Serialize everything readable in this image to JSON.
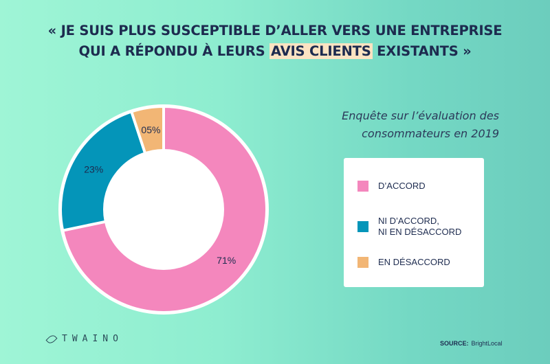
{
  "header": {
    "line1": "« JE SUIS PLUS SUSCEPTIBLE D’ALLER VERS UNE ENTREPRISE",
    "line2_before": "QUI A RÉPONDU À LEURS ",
    "line2_highlight": "AVIS CLIENTS",
    "line2_after": " EXISTANTS »"
  },
  "subtitle": "Enquête sur l’évaluation des consommateurs en 2019",
  "chart_data": {
    "type": "pie",
    "donut": true,
    "categories": [
      "D’ACCORD",
      "NI D’ACCORD, NI EN DÉSACCORD",
      "EN DÉSACCORD"
    ],
    "values": [
      71,
      23,
      5
    ],
    "data_labels": [
      "71%",
      "23%",
      "05%"
    ],
    "colors": [
      "#f487bd",
      "#0495b9",
      "#f2b675"
    ],
    "legend_position": "right"
  },
  "legend": {
    "items": [
      {
        "label": "D’ACCORD",
        "color": "#f487bd"
      },
      {
        "label": "NI D’ACCORD,\nNI EN DÉSACCORD",
        "color": "#0495b9"
      },
      {
        "label": "EN DÉSACCORD",
        "color": "#f2b675"
      }
    ]
  },
  "logo_text": "TWAINO",
  "source": {
    "label": "SOURCE:",
    "value": "BrightLocal"
  }
}
